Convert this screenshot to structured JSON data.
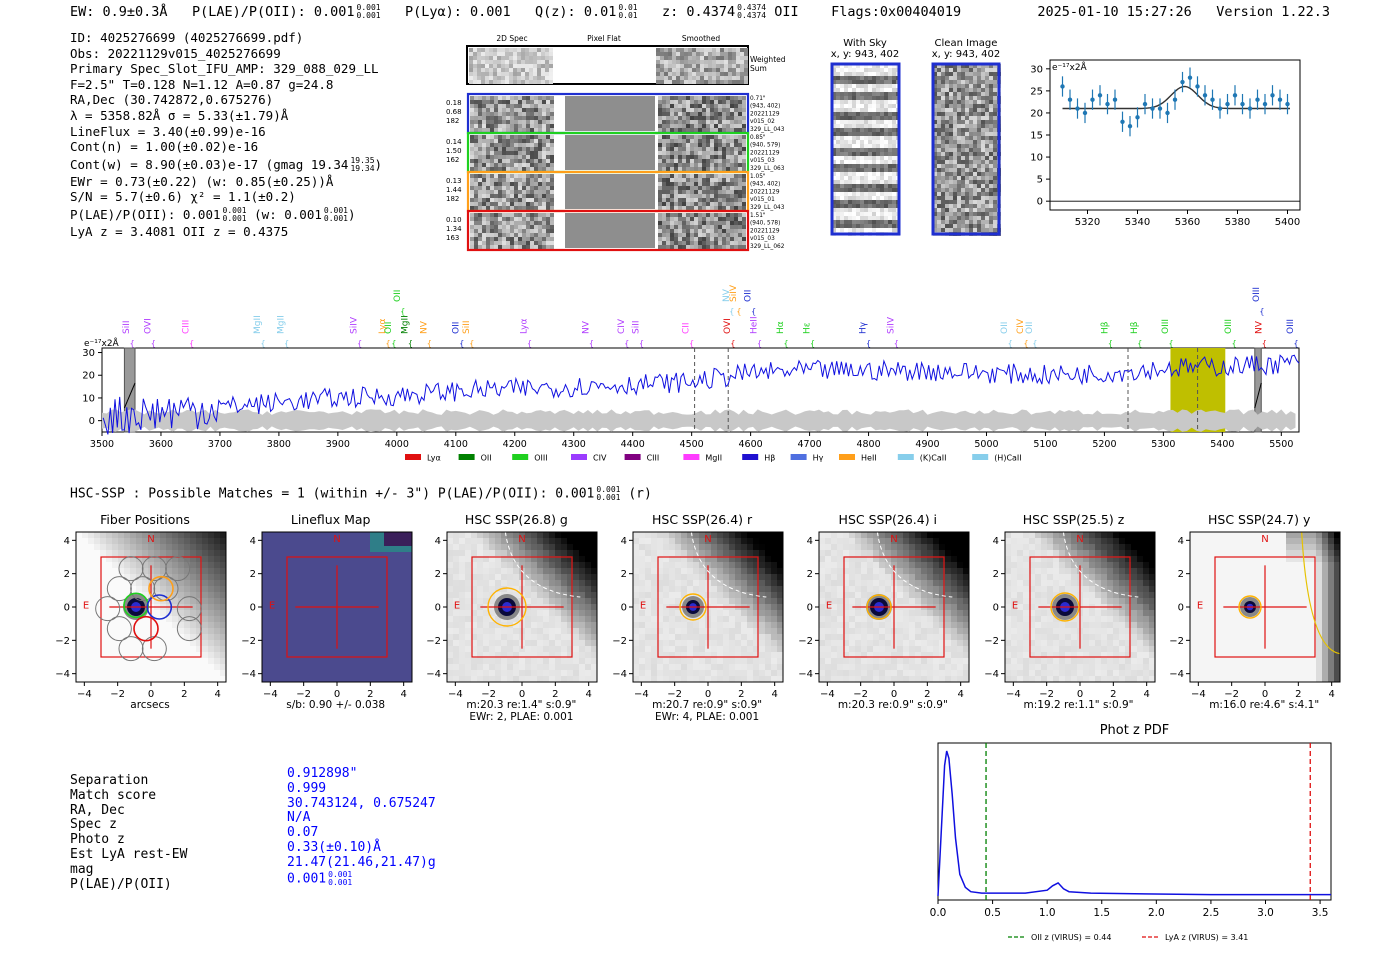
{
  "header": {
    "ew": "EW: 0.9±0.3Å",
    "plae_label": "P(LAE)/P(OII): 0.001",
    "plae_hi": "0.001",
    "plae_lo": "0.001",
    "plya": "P(Lyα): 0.001",
    "qz_label": "Q(z): 0.01",
    "qz_hi": "0.01",
    "qz_lo": "0.01",
    "z_label": "z: 0.4374",
    "z_hi": "0.4374",
    "z_lo": "0.4374",
    "z_line": "OII",
    "flags": "Flags:0x00404019",
    "datetime": "2025-01-10 15:27:26",
    "version": "Version 1.22.3"
  },
  "info": {
    "l1": "ID: 4025276699 (4025276699.pdf)",
    "l2": "Obs: 20221129v015_4025276699",
    "l3": "Primary Spec_Slot_IFU_AMP: 329_088_029_LL",
    "l4": "F=2.5\"  T=0.128  N=1.12  A=0.87  g=24.8",
    "l5": "RA,Dec (30.742872,0.675276)",
    "l6": "λ = 5358.82Å  σ = 5.33(±1.79)Å",
    "l7": "LineFlux = 3.40(±0.99)e-16",
    "l8": "Cont(n) = 1.00(±0.02)e-16",
    "l9": "Cont(w) = 8.90(±0.03)e-17 (gmag 19.34",
    "l9_hi": "19.35",
    "l9_lo": "19.34",
    "l10": "EWr = 0.73(±0.22) (w: 0.85(±0.25))Å",
    "l11": "S/N = 5.7(±0.6)  χ² = 1.1(±0.2)",
    "l12a": "P(LAE)/P(OII): 0.001",
    "l12_hi": "0.001",
    "l12_lo": "0.001",
    "l12b": "(w: 0.001",
    "l12b_hi": "0.001",
    "l12b_lo": "0.001",
    "l13": "LyA z = 3.4081  OII z = 0.4375"
  },
  "strips": {
    "col_titles": [
      "2D Spec",
      "Pixel Flat",
      "Smoothed"
    ],
    "weighted": "Weighted Sum",
    "rows": [
      {
        "left": [
          "0.18",
          "0.68",
          "182"
        ],
        "right": [
          "0.71\"",
          "(943, 402)",
          "20221129",
          "v015_02",
          "329_LL_043"
        ],
        "color": "#1f2fd0"
      },
      {
        "left": [
          "0.14",
          "1.50",
          "162"
        ],
        "right": [
          "0.85\"",
          "(940, 579)",
          "20221129",
          "v015_03",
          "329_LL_063"
        ],
        "color": "#1fd01f"
      },
      {
        "left": [
          "0.13",
          "1.44",
          "182"
        ],
        "right": [
          "1.05\"",
          "(943, 402)",
          "20221129",
          "v015_01",
          "329_LL_043"
        ],
        "color": "#ff9f1a"
      },
      {
        "left": [
          "0.10",
          "1.34",
          "163"
        ],
        "right": [
          "1.51\"",
          "(940, 578)",
          "20221129",
          "v015_03",
          "329_LL_062"
        ],
        "color": "#e01010"
      }
    ]
  },
  "cutouts": {
    "with_sky": "With Sky",
    "with_sky_xy": "x, y: 943, 402",
    "clean": "Clean Image",
    "clean_xy": "x, y: 943, 402"
  },
  "zoom_chart": {
    "type": "scatter",
    "units": "e⁻¹⁷x2Å",
    "xlim": [
      5305,
      5405
    ],
    "ylim": [
      -2,
      32
    ],
    "xticks": [
      5320,
      5340,
      5360,
      5380,
      5400
    ],
    "yticks": [
      0,
      5,
      10,
      15,
      20,
      25,
      30
    ],
    "x": [
      5310,
      5313,
      5316,
      5319,
      5322,
      5325,
      5328,
      5331,
      5334,
      5337,
      5340,
      5343,
      5346,
      5349,
      5352,
      5355,
      5358,
      5361,
      5364,
      5367,
      5370,
      5373,
      5376,
      5379,
      5382,
      5385,
      5388,
      5391,
      5394,
      5397,
      5400
    ],
    "y": [
      26,
      23,
      21,
      20,
      23,
      24,
      22,
      23,
      18,
      17,
      19,
      22,
      21,
      21,
      20,
      23,
      27,
      28,
      26,
      24,
      23,
      21,
      22,
      24,
      22,
      21,
      23,
      22,
      24,
      23,
      22
    ],
    "err": 2.3,
    "fit": {
      "continuum": 21,
      "amp": 5,
      "center": 5358.8,
      "sigma": 5.3
    }
  },
  "spec_lines": [
    {
      "label": "SiII",
      "x": 3546,
      "color": "#b03cff",
      "row": 0
    },
    {
      "label": "OVI",
      "x": 3582,
      "color": "#b03cff",
      "row": 0
    },
    {
      "label": "CIII",
      "x": 3647,
      "color": "#ff3cff",
      "row": 0
    },
    {
      "label": "MgII",
      "x": 3768,
      "color": "#87ceeb",
      "row": 0
    },
    {
      "label": "MgII",
      "x": 3808,
      "color": "#87ceeb",
      "row": 0
    },
    {
      "label": "SiIV",
      "x": 3932,
      "color": "#b03cff",
      "row": 0
    },
    {
      "label": "Lyα",
      "x": 3980,
      "color": "#ff9f1a",
      "row": 0
    },
    {
      "label": "OII",
      "x": 3990,
      "color": "#1fd01f",
      "row": 0
    },
    {
      "label": "MgII",
      "x": 4018,
      "color": "#008000",
      "row": 0
    },
    {
      "label": "NV",
      "x": 4050,
      "color": "#ff9f1a",
      "row": 0
    },
    {
      "label": "OII",
      "x": 4005,
      "color": "#1fd01f",
      "row": 1
    },
    {
      "label": "OII",
      "x": 4105,
      "color": "#1f2fd0",
      "row": 0
    },
    {
      "label": "SiII",
      "x": 4122,
      "color": "#ff9f1a",
      "row": 0
    },
    {
      "label": "Lyα",
      "x": 4220,
      "color": "#b03cff",
      "row": 0
    },
    {
      "label": "NV",
      "x": 4325,
      "color": "#b03cff",
      "row": 0
    },
    {
      "label": "CIV",
      "x": 4385,
      "color": "#b03cff",
      "row": 0
    },
    {
      "label": "SiII",
      "x": 4410,
      "color": "#b03cff",
      "row": 0
    },
    {
      "label": "CII",
      "x": 4495,
      "color": "#ff3cff",
      "row": 0
    },
    {
      "label": "OVI",
      "x": 4565,
      "color": "#e01010",
      "row": 0
    },
    {
      "label": "HeII",
      "x": 4610,
      "color": "#b03cff",
      "row": 0
    },
    {
      "label": "Hα",
      "x": 4655,
      "color": "#1fd01f",
      "row": 0
    },
    {
      "label": "Hε",
      "x": 4700,
      "color": "#1fd01f",
      "row": 0
    },
    {
      "label": "Hγ",
      "x": 4795,
      "color": "#1f2fd0",
      "row": 0
    },
    {
      "label": "SiIV",
      "x": 4842,
      "color": "#b03cff",
      "row": 0
    },
    {
      "label": "NV",
      "x": 4563,
      "color": "#87ceeb",
      "row": 1
    },
    {
      "label": "SiIV",
      "x": 4575,
      "color": "#ff9f1a",
      "row": 1
    },
    {
      "label": "OII",
      "x": 4600,
      "color": "#1f2fd0",
      "row": 1
    },
    {
      "label": "OII",
      "x": 5035,
      "color": "#87ceeb",
      "row": 0
    },
    {
      "label": "CIV",
      "x": 5062,
      "color": "#ff9f1a",
      "row": 0
    },
    {
      "label": "OII",
      "x": 5077,
      "color": "#87ceeb",
      "row": 0
    },
    {
      "label": "Hβ",
      "x": 5205,
      "color": "#1fd01f",
      "row": 0
    },
    {
      "label": "Hβ",
      "x": 5255,
      "color": "#1fd01f",
      "row": 0
    },
    {
      "label": "OIII",
      "x": 5308,
      "color": "#1fd01f",
      "row": 0
    },
    {
      "label": "OIII",
      "x": 5415,
      "color": "#1fd01f",
      "row": 0
    },
    {
      "label": "NV",
      "x": 5466,
      "color": "#e01010",
      "row": 0
    },
    {
      "label": "OIII",
      "x": 5462,
      "color": "#1f2fd0",
      "row": 1
    },
    {
      "label": "OIII",
      "x": 5520,
      "color": "#1f2fd0",
      "row": 0
    }
  ],
  "spec_chart": {
    "type": "line",
    "units": "e⁻¹⁷x2Å",
    "xlim": [
      3500,
      5530
    ],
    "ylim": [
      -5,
      32
    ],
    "xticks": [
      3500,
      3600,
      3700,
      3800,
      3900,
      4000,
      4100,
      4200,
      4300,
      4400,
      4500,
      4600,
      4700,
      4800,
      4900,
      5000,
      5100,
      5200,
      5300,
      5400,
      5500
    ],
    "yticks": [
      0,
      10,
      20,
      30
    ],
    "x": [
      3500,
      3600,
      3700,
      3800,
      3900,
      4000,
      4100,
      4200,
      4300,
      4400,
      4500,
      4600,
      4700,
      4800,
      4900,
      5000,
      5100,
      5200,
      5300,
      5400,
      5500,
      5530
    ],
    "y": [
      2,
      4,
      6,
      8,
      10,
      11,
      13,
      14,
      15,
      16,
      17,
      21,
      22,
      22,
      22,
      21,
      20,
      21,
      23,
      24,
      25,
      26
    ],
    "dashed": [
      4505,
      4562,
      5240,
      5358
    ],
    "highlight": [
      5312,
      5405
    ],
    "grey_bands": [
      [
        3538,
        3556
      ],
      [
        5455,
        5466
      ]
    ]
  },
  "legend": [
    {
      "label": "Lyα",
      "color": "#e01010"
    },
    {
      "label": "OII",
      "color": "#008000"
    },
    {
      "label": "OIII",
      "color": "#1fd01f"
    },
    {
      "label": "CIV",
      "color": "#9b3cff"
    },
    {
      "label": "CIII",
      "color": "#800080"
    },
    {
      "label": "MgII",
      "color": "#ff3cff"
    },
    {
      "label": "Hβ",
      "color": "#1f10d0"
    },
    {
      "label": "Hγ",
      "color": "#4f6fe0"
    },
    {
      "label": "HeII",
      "color": "#ff9f1a"
    },
    {
      "label": "(K)CaII",
      "color": "#87ceeb"
    },
    {
      "label": "(H)CaII",
      "color": "#87ceeb"
    }
  ],
  "hsc": {
    "title": "HSC-SSP : Possible Matches = 1 (within +/- 3\")  P(LAE)/P(OII): 0.001",
    "hi": "0.001",
    "lo": "0.001",
    "tail": "(r)"
  },
  "cutout_panels": [
    {
      "title": "Fiber Positions",
      "cap1": "arcsecs",
      "cap2": ""
    },
    {
      "title": "Lineflux Map",
      "cap1": "s/b: 0.90 +/- 0.038",
      "cap2": ""
    },
    {
      "title": "HSC SSP(26.8) g",
      "cap1": "m:20.3   re:1.4\"   s:0.9\"",
      "cap2": "EWr: 2, PLAE: 0.001"
    },
    {
      "title": "HSC SSP(26.4) r",
      "cap1": "m:20.7   re:0.9\"   s:0.9\"",
      "cap2": "EWr: 4, PLAE: 0.001"
    },
    {
      "title": "HSC SSP(26.4) i",
      "cap1": "m:20.3   re:0.9\"   s:0.9\"",
      "cap2": ""
    },
    {
      "title": "HSC SSP(25.5) z",
      "cap1": "m:19.2   re:1.1\"   s:0.9\"",
      "cap2": ""
    },
    {
      "title": "HSC SSP(24.7) y",
      "cap1": "m:16.0   re:4.6\"   s:4.1\"",
      "cap2": ""
    }
  ],
  "cutout_axis": {
    "ticks": [
      "−4",
      "−2",
      "0",
      "2",
      "4"
    ],
    "N": "N",
    "E": "E"
  },
  "match": {
    "keys": [
      "Separation",
      "Match score",
      "RA, Dec",
      "Spec z",
      "Photo z",
      "Est LyA rest-EW",
      "mag",
      "P(LAE)/P(OII)"
    ],
    "vals": [
      "0.912898\"",
      "0.999",
      "30.743124, 0.675247",
      "N/A",
      "0.07",
      "0.33(±0.10)Å",
      "21.47(21.46,21.47)g",
      "0.001"
    ],
    "plae_hi": "0.001",
    "plae_lo": "0.001"
  },
  "pdf_chart": {
    "type": "line",
    "title": "Phot z PDF",
    "xlim": [
      0,
      3.6
    ],
    "xticks": [
      0.0,
      0.5,
      1.0,
      1.5,
      2.0,
      2.5,
      3.0,
      3.5
    ],
    "x": [
      0.0,
      0.03,
      0.06,
      0.08,
      0.1,
      0.13,
      0.16,
      0.2,
      0.25,
      0.3,
      0.4,
      0.6,
      0.8,
      1.0,
      1.05,
      1.1,
      1.15,
      1.2,
      1.4,
      1.8,
      2.5,
      3.6
    ],
    "y": [
      0.0,
      0.45,
      0.9,
      1.0,
      0.95,
      0.7,
      0.4,
      0.15,
      0.06,
      0.03,
      0.02,
      0.02,
      0.02,
      0.04,
      0.07,
      0.09,
      0.05,
      0.03,
      0.02,
      0.015,
      0.01,
      0.01
    ],
    "oii_z": 0.44,
    "lya_z": 3.41,
    "legend_oii": "OII z (VIRUS) = 0.44",
    "legend_lya": "LyA z (VIRUS) = 3.41",
    "oii_color": "#008000",
    "lya_color": "#e01010"
  }
}
